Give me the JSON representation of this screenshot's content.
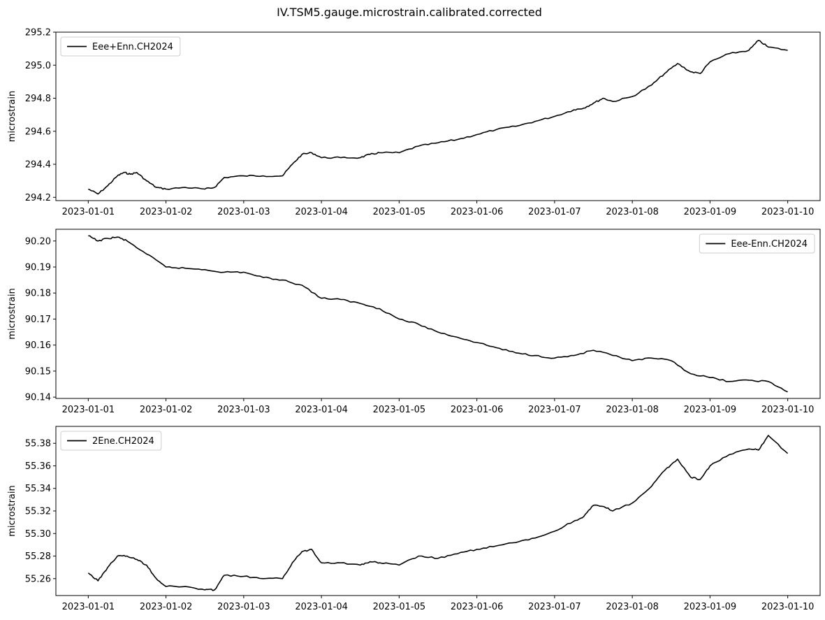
{
  "figure": {
    "suptitle": "IV.TSM5.gauge.microstrain.calibrated.corrected"
  },
  "chart_data": [
    {
      "type": "line",
      "ylabel": "microstrain",
      "ylim": [
        294.18,
        295.2
      ],
      "yticks": [
        294.2,
        294.4,
        294.6,
        294.8,
        295.0,
        295.2
      ],
      "ytick_labels": [
        "294.2",
        "294.4",
        "294.6",
        "294.8",
        "295.0",
        "295.2"
      ],
      "xlim": [
        "2022-12-31T14:00",
        "2023-01-10T10:00"
      ],
      "xticks": [
        "2023-01-01",
        "2023-01-02",
        "2023-01-03",
        "2023-01-04",
        "2023-01-05",
        "2023-01-06",
        "2023-01-07",
        "2023-01-08",
        "2023-01-09",
        "2023-01-10"
      ],
      "legend_position": "upper-left",
      "series": [
        {
          "name": "Eee+Enn.CH2024",
          "color": "#000000",
          "x": [
            "2023-01-01T00:00",
            "2023-01-01T03:00",
            "2023-01-01T06:00",
            "2023-01-01T09:00",
            "2023-01-01T11:00",
            "2023-01-01T13:00",
            "2023-01-01T15:00",
            "2023-01-01T18:00",
            "2023-01-01T21:00",
            "2023-01-02T00:00",
            "2023-01-02T06:00",
            "2023-01-02T12:00",
            "2023-01-02T15:00",
            "2023-01-02T18:00",
            "2023-01-03T00:00",
            "2023-01-03T06:00",
            "2023-01-03T12:00",
            "2023-01-03T15:00",
            "2023-01-03T18:00",
            "2023-01-03T21:00",
            "2023-01-04T00:00",
            "2023-01-04T06:00",
            "2023-01-04T12:00",
            "2023-01-04T15:00",
            "2023-01-04T18:00",
            "2023-01-05T00:00",
            "2023-01-05T06:00",
            "2023-01-05T12:00",
            "2023-01-05T18:00",
            "2023-01-06T00:00",
            "2023-01-06T06:00",
            "2023-01-06T12:00",
            "2023-01-06T18:00",
            "2023-01-07T00:00",
            "2023-01-07T06:00",
            "2023-01-07T09:00",
            "2023-01-07T12:00",
            "2023-01-07T15:00",
            "2023-01-07T18:00",
            "2023-01-08T00:00",
            "2023-01-08T06:00",
            "2023-01-08T10:00",
            "2023-01-08T14:00",
            "2023-01-08T18:00",
            "2023-01-08T21:00",
            "2023-01-09T00:00",
            "2023-01-09T06:00",
            "2023-01-09T12:00",
            "2023-01-09T15:00",
            "2023-01-09T18:00",
            "2023-01-10T00:00"
          ],
          "y": [
            294.25,
            294.22,
            294.27,
            294.33,
            294.35,
            294.34,
            294.35,
            294.3,
            294.26,
            294.25,
            294.26,
            294.25,
            294.26,
            294.32,
            294.33,
            294.33,
            294.33,
            294.4,
            294.46,
            294.47,
            294.44,
            294.44,
            294.44,
            294.46,
            294.47,
            294.47,
            294.51,
            294.53,
            294.55,
            294.58,
            294.61,
            294.63,
            294.66,
            294.69,
            294.73,
            294.74,
            294.77,
            294.8,
            294.78,
            294.81,
            294.88,
            294.95,
            295.01,
            294.96,
            294.95,
            295.02,
            295.07,
            295.09,
            295.15,
            295.11,
            295.09
          ]
        }
      ]
    },
    {
      "type": "line",
      "ylabel": "microstrain",
      "ylim": [
        90.1395,
        90.2045
      ],
      "yticks": [
        90.14,
        90.15,
        90.16,
        90.17,
        90.18,
        90.19,
        90.2
      ],
      "ytick_labels": [
        "90.14",
        "90.15",
        "90.16",
        "90.17",
        "90.18",
        "90.19",
        "90.20"
      ],
      "xlim": [
        "2022-12-31T14:00",
        "2023-01-10T10:00"
      ],
      "xticks": [
        "2023-01-01",
        "2023-01-02",
        "2023-01-03",
        "2023-01-04",
        "2023-01-05",
        "2023-01-06",
        "2023-01-07",
        "2023-01-08",
        "2023-01-09",
        "2023-01-10"
      ],
      "legend_position": "upper-right",
      "series": [
        {
          "name": "Eee-Enn.CH2024",
          "color": "#000000",
          "x": [
            "2023-01-01T00:00",
            "2023-01-01T03:00",
            "2023-01-01T06:00",
            "2023-01-01T09:00",
            "2023-01-01T12:00",
            "2023-01-01T18:00",
            "2023-01-02T00:00",
            "2023-01-02T06:00",
            "2023-01-02T12:00",
            "2023-01-02T18:00",
            "2023-01-03T00:00",
            "2023-01-03T06:00",
            "2023-01-03T12:00",
            "2023-01-03T18:00",
            "2023-01-04T00:00",
            "2023-01-04T06:00",
            "2023-01-04T12:00",
            "2023-01-04T18:00",
            "2023-01-05T00:00",
            "2023-01-05T06:00",
            "2023-01-05T12:00",
            "2023-01-05T18:00",
            "2023-01-06T00:00",
            "2023-01-06T06:00",
            "2023-01-06T12:00",
            "2023-01-06T18:00",
            "2023-01-07T00:00",
            "2023-01-07T06:00",
            "2023-01-07T12:00",
            "2023-01-07T18:00",
            "2023-01-08T00:00",
            "2023-01-08T06:00",
            "2023-01-08T12:00",
            "2023-01-08T18:00",
            "2023-01-09T00:00",
            "2023-01-09T06:00",
            "2023-01-09T12:00",
            "2023-01-09T18:00",
            "2023-01-10T00:00"
          ],
          "y": [
            90.202,
            90.2,
            90.201,
            90.2015,
            90.2,
            90.195,
            90.19,
            90.1895,
            90.189,
            90.188,
            90.188,
            90.186,
            90.185,
            90.183,
            90.178,
            90.1775,
            90.176,
            90.174,
            90.17,
            90.168,
            90.165,
            90.163,
            90.161,
            90.159,
            90.157,
            90.156,
            90.155,
            90.156,
            90.158,
            90.156,
            90.154,
            90.155,
            90.154,
            90.149,
            90.1475,
            90.146,
            90.1465,
            90.146,
            90.142
          ]
        }
      ]
    },
    {
      "type": "line",
      "ylabel": "microstrain",
      "ylim": [
        55.245,
        55.395
      ],
      "yticks": [
        55.26,
        55.28,
        55.3,
        55.32,
        55.34,
        55.36,
        55.38
      ],
      "ytick_labels": [
        "55.26",
        "55.28",
        "55.30",
        "55.32",
        "55.34",
        "55.36",
        "55.38"
      ],
      "xlim": [
        "2022-12-31T14:00",
        "2023-01-10T10:00"
      ],
      "xticks": [
        "2023-01-01",
        "2023-01-02",
        "2023-01-03",
        "2023-01-04",
        "2023-01-05",
        "2023-01-06",
        "2023-01-07",
        "2023-01-08",
        "2023-01-09",
        "2023-01-10"
      ],
      "legend_position": "upper-left",
      "series": [
        {
          "name": "2Ene.CH2024",
          "color": "#000000",
          "x": [
            "2023-01-01T00:00",
            "2023-01-01T03:00",
            "2023-01-01T06:00",
            "2023-01-01T09:00",
            "2023-01-01T12:00",
            "2023-01-01T15:00",
            "2023-01-01T18:00",
            "2023-01-01T21:00",
            "2023-01-02T00:00",
            "2023-01-02T06:00",
            "2023-01-02T12:00",
            "2023-01-02T15:00",
            "2023-01-02T18:00",
            "2023-01-03T00:00",
            "2023-01-03T06:00",
            "2023-01-03T12:00",
            "2023-01-03T15:00",
            "2023-01-03T18:00",
            "2023-01-03T21:00",
            "2023-01-04T00:00",
            "2023-01-04T06:00",
            "2023-01-04T12:00",
            "2023-01-04T15:00",
            "2023-01-04T18:00",
            "2023-01-05T00:00",
            "2023-01-05T06:00",
            "2023-01-05T12:00",
            "2023-01-05T18:00",
            "2023-01-06T00:00",
            "2023-01-06T06:00",
            "2023-01-06T12:00",
            "2023-01-06T18:00",
            "2023-01-07T00:00",
            "2023-01-07T06:00",
            "2023-01-07T09:00",
            "2023-01-07T12:00",
            "2023-01-07T15:00",
            "2023-01-07T18:00",
            "2023-01-08T00:00",
            "2023-01-08T06:00",
            "2023-01-08T10:00",
            "2023-01-08T14:00",
            "2023-01-08T18:00",
            "2023-01-08T21:00",
            "2023-01-09T00:00",
            "2023-01-09T06:00",
            "2023-01-09T12:00",
            "2023-01-09T15:00",
            "2023-01-09T18:00",
            "2023-01-10T00:00"
          ],
          "y": [
            55.265,
            55.258,
            55.27,
            55.28,
            55.28,
            55.277,
            55.272,
            55.26,
            55.253,
            55.253,
            55.25,
            55.25,
            55.263,
            55.262,
            55.26,
            55.26,
            55.274,
            55.284,
            55.286,
            55.274,
            55.274,
            55.272,
            55.275,
            55.274,
            55.272,
            55.28,
            55.278,
            55.282,
            55.286,
            55.289,
            55.292,
            55.296,
            55.302,
            55.311,
            55.315,
            55.325,
            55.324,
            55.32,
            55.327,
            55.342,
            55.356,
            55.366,
            55.35,
            55.348,
            55.36,
            55.37,
            55.375,
            55.374,
            55.387,
            55.371
          ]
        }
      ]
    }
  ]
}
